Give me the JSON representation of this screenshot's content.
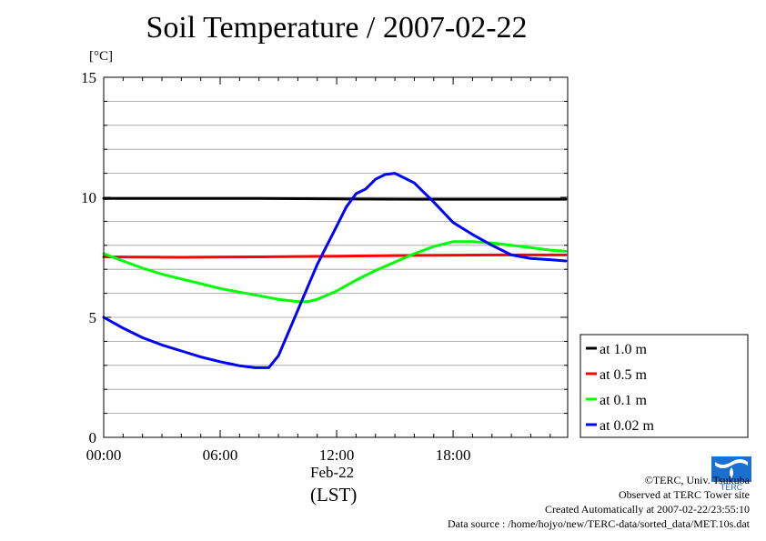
{
  "chart_data": {
    "type": "line",
    "title": "Soil Temperature / 2007-02-22",
    "ylabel": "[°C]",
    "ylim": [
      0,
      15
    ],
    "yticks": [
      0,
      5,
      10,
      15
    ],
    "xlim": [
      0,
      23.9
    ],
    "xticks": [
      {
        "value": 0,
        "label": "00:00"
      },
      {
        "value": 6,
        "label": "06:00"
      },
      {
        "value": 12,
        "label": "12:00"
      },
      {
        "value": 18,
        "label": "18:00"
      }
    ],
    "xlabel_date": "Feb-22",
    "xlabel_tz": "(LST)",
    "grid": true,
    "legend_position": "right",
    "series": [
      {
        "name": "at 1.0 m",
        "color": "#000000",
        "x": [
          0,
          4,
          8,
          12,
          16,
          20,
          23.8
        ],
        "y": [
          9.95,
          9.95,
          9.95,
          9.93,
          9.92,
          9.92,
          9.92
        ]
      },
      {
        "name": "at 0.5 m",
        "color": "#ff0000",
        "x": [
          0,
          4,
          8,
          12,
          16,
          20,
          23.8
        ],
        "y": [
          7.52,
          7.5,
          7.52,
          7.55,
          7.58,
          7.6,
          7.6
        ]
      },
      {
        "name": "at 0.1 m",
        "color": "#00ff00",
        "x": [
          0,
          1,
          2,
          3,
          4,
          5,
          6,
          7,
          8,
          9,
          10,
          10.5,
          11,
          12,
          13,
          14,
          15,
          16,
          17,
          18,
          19,
          20,
          21,
          22,
          23,
          23.8
        ],
        "y": [
          7.65,
          7.35,
          7.05,
          6.8,
          6.6,
          6.4,
          6.2,
          6.05,
          5.9,
          5.75,
          5.65,
          5.65,
          5.75,
          6.1,
          6.55,
          6.95,
          7.3,
          7.65,
          7.95,
          8.15,
          8.15,
          8.1,
          8.0,
          7.9,
          7.8,
          7.75
        ]
      },
      {
        "name": "at 0.02 m",
        "color": "#0000ff",
        "x": [
          0,
          1,
          2,
          3,
          4,
          5,
          6,
          7,
          7.8,
          8.5,
          9,
          10,
          11,
          12,
          12.5,
          13,
          13.5,
          14,
          14.5,
          15,
          15.5,
          16,
          17,
          18,
          19,
          20,
          21,
          22,
          23,
          23.8
        ],
        "y": [
          5.0,
          4.55,
          4.15,
          3.85,
          3.6,
          3.35,
          3.15,
          2.98,
          2.9,
          2.9,
          3.4,
          5.3,
          7.2,
          8.8,
          9.6,
          10.15,
          10.35,
          10.75,
          10.95,
          11.0,
          10.8,
          10.6,
          9.8,
          8.95,
          8.45,
          8.0,
          7.6,
          7.45,
          7.4,
          7.35
        ]
      }
    ]
  },
  "credits": {
    "copyright": "©TERC, Univ. Tsukuba",
    "site": "Observed at TERC Tower site",
    "created": "Created Automatically at 2007-02-22/23:55:10",
    "source": "Data source : /home/hojyo/new/TERC-data/sorted_data/MET.10s.dat"
  },
  "logo": {
    "name": "terc-logo-icon",
    "text": "TERC",
    "color": "#1a6fd0"
  }
}
